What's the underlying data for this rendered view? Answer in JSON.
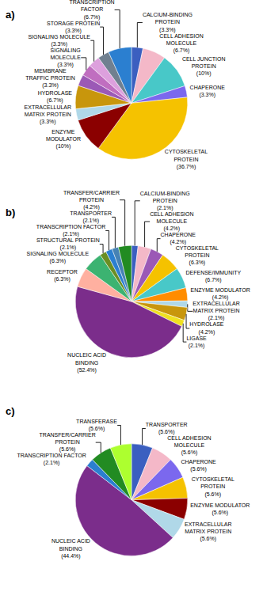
{
  "chart_data": [
    {
      "type": "pie",
      "title": "a)",
      "categories": [
        "CALCIUM-BINDING\nPROTEIN\n(3.3%)",
        "CELL ADHESION\nMOLECULE\n(6.7%)",
        "CELL JUNCTION\nPROTEIN\n(10%)",
        "CHAPERONE\n(3.3%)",
        "CYTOSKELETAL\nPROTEIN\n(36.7%)",
        "ENZYME\nMODULATOR\n(10%)",
        "EXTRACELLULAR\nMATRIX PROTEIN\n(3.3%)",
        "HYDROLASE\n(6.7%)",
        "MEMBRANE\nTRAFFIC PROTEIN\n(3.3%)",
        "SIGNALING\nMOLECULE\n(3.3%)",
        "SIGNALING MOLECULE\n(3.3%)",
        "STORAGE PROTEIN\n(3.3%)",
        "TRANSCRIPTION\nFACTOR\n(6.7%)"
      ],
      "values": [
        3.3,
        6.7,
        10.0,
        3.3,
        36.7,
        10.0,
        3.3,
        6.7,
        3.3,
        3.3,
        3.3,
        3.3,
        6.7
      ],
      "colors": [
        "#3B5FC0",
        "#F4B8C8",
        "#48C8C8",
        "#7B68EE",
        "#F5C200",
        "#8B0000",
        "#B0D8E8",
        "#C8960C",
        "#9B59B6",
        "#C06EC0",
        "#DDA0DD",
        "#708090",
        "#2B7FD0"
      ]
    },
    {
      "type": "pie",
      "title": "b)",
      "categories": [
        "CALCIUM-BINDING\nPROTEIN\n(2.1%)",
        "CELL ADHESION\nMOLECULE\n(4.2%)",
        "CHAPERONE\n(4.2%)",
        "CYTOSKELETAL\nPROTEIN\n(6.3%)",
        "DEFENSE/IMMUNITY\n(6.7%)",
        "ENZYME MODULATOR\n(4.2%)",
        "EXTRACELLULAR\nMATRIX PROTEIN\n(2.1%)",
        "HYDROLASE\n(4.2%)",
        "LIGASE\n(2.1%)",
        "NUCLEIC ACID\nBINDING\n(52.4%)",
        "RECEPTOR\n(6.3%)",
        "SIGNALING MOLECULE\n(6.3%)",
        "STRUCTURAL PROTEIN\n(2.1%)",
        "TRANSCRIPTION FACTOR\n(2.1%)",
        "TRANSPORTER\n(2.1%)",
        "TRANSFER/CARRIER\nPROTEIN\n(4.2%)"
      ],
      "values": [
        2.1,
        4.2,
        4.2,
        6.3,
        6.7,
        4.2,
        2.1,
        4.2,
        2.1,
        52.4,
        6.3,
        6.3,
        2.1,
        2.1,
        2.1,
        4.2
      ],
      "colors": [
        "#3B5FC0",
        "#F4B8C8",
        "#9B59B6",
        "#F5C200",
        "#48C8C8",
        "#FF8C00",
        "#B0D8E8",
        "#C8960C",
        "#F0E020",
        "#7B2D8B",
        "#FFB0A0",
        "#3CB371",
        "#6B8E23",
        "#2B7FD0",
        "#4682B4",
        "#228B22"
      ]
    },
    {
      "type": "pie",
      "title": "c)",
      "categories": [
        "TRANSPORTER\n(5.6%)",
        "CELL ADHESION\nMOLECULE\n(5.6%)",
        "CHAPERONE\n(5.6%)",
        "CYTOSKELETAL\nPROTEIN\n(5.6%)",
        "ENZYME MODULATOR\n(5.6%)",
        "EXTRACELLULAR\nMATRIX PROTEIN\n(5.6%)",
        "NUCLEIC ACID\nBINDING\n(44.4%)",
        "TRANSCRIPTION FACTOR\n(2.1%)",
        "TRANSFER/CARRIER\nPROTEIN\n(5.6%)",
        "TRANSFERASE\n(5.6%)"
      ],
      "values": [
        5.6,
        5.6,
        5.6,
        5.6,
        5.6,
        5.6,
        44.4,
        2.1,
        5.6,
        5.6
      ],
      "colors": [
        "#3B5FC0",
        "#F4B8C8",
        "#7B68EE",
        "#F5C200",
        "#8B0000",
        "#B0D8E8",
        "#7B2D8B",
        "#2B7FD0",
        "#228B22",
        "#ADFF2F"
      ]
    }
  ]
}
